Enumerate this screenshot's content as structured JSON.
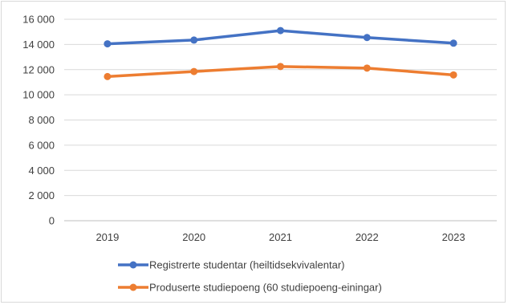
{
  "chart_data": {
    "type": "line",
    "categories": [
      "2019",
      "2020",
      "2021",
      "2022",
      "2023"
    ],
    "y_tick_labels": [
      "0",
      "2 000",
      "4 000",
      "6 000",
      "8 000",
      "10 000",
      "12 000",
      "14 000",
      "16 000"
    ],
    "ylim": [
      0,
      16000
    ],
    "grid": true,
    "legend_position": "bottom",
    "series": [
      {
        "name": "Registrerte studentar (heiltidsekvivalentar)",
        "values": [
          14050,
          14350,
          15100,
          14550,
          14100
        ],
        "color": "#4472c4"
      },
      {
        "name": "Produserte studiepoeng (60 studiepoeng-einingar)",
        "values": [
          11450,
          11850,
          12250,
          12120,
          11580
        ],
        "color": "#ed7d31"
      }
    ]
  }
}
